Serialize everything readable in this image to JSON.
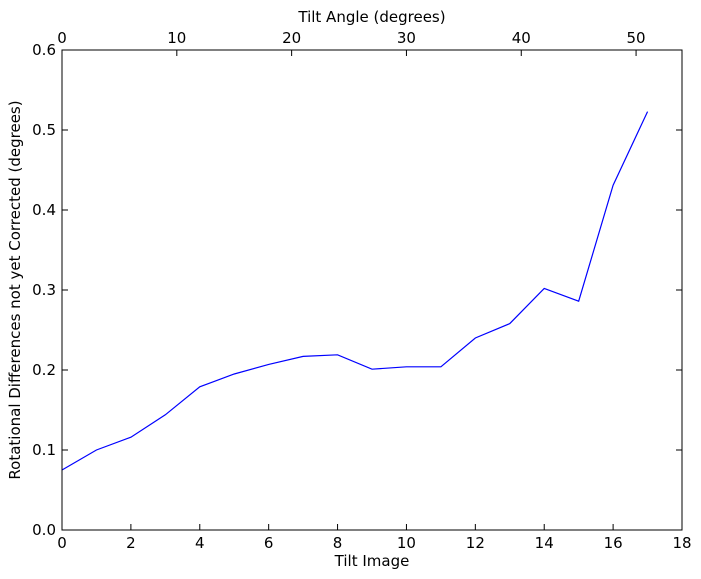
{
  "chart_data": {
    "type": "line",
    "xlabel": "Tilt Image",
    "ylabel": "Rotational Differences not yet Corrected (degrees)",
    "x2label": "Tilt Angle (degrees)",
    "xlim": [
      0,
      18
    ],
    "ylim": [
      0,
      0.6
    ],
    "x2lim": [
      0,
      54
    ],
    "xticks": [
      "0",
      "2",
      "4",
      "6",
      "8",
      "10",
      "12",
      "14",
      "16",
      "18"
    ],
    "yticks": [
      "0.0",
      "0.1",
      "0.2",
      "0.3",
      "0.4",
      "0.5",
      "0.6"
    ],
    "x2ticks": [
      "0",
      "10",
      "20",
      "30",
      "40",
      "50"
    ],
    "grid": false,
    "line_color": "#0000ff",
    "series": [
      {
        "x": [
          0,
          1,
          2,
          3,
          4,
          5,
          6,
          7,
          8,
          9,
          10,
          11,
          12,
          13,
          14,
          15,
          16,
          17
        ],
        "values": [
          0.075,
          0.1,
          0.116,
          0.144,
          0.179,
          0.195,
          0.207,
          0.217,
          0.219,
          0.201,
          0.204,
          0.204,
          0.24,
          0.258,
          0.302,
          0.286,
          0.431,
          0.523
        ]
      }
    ]
  }
}
